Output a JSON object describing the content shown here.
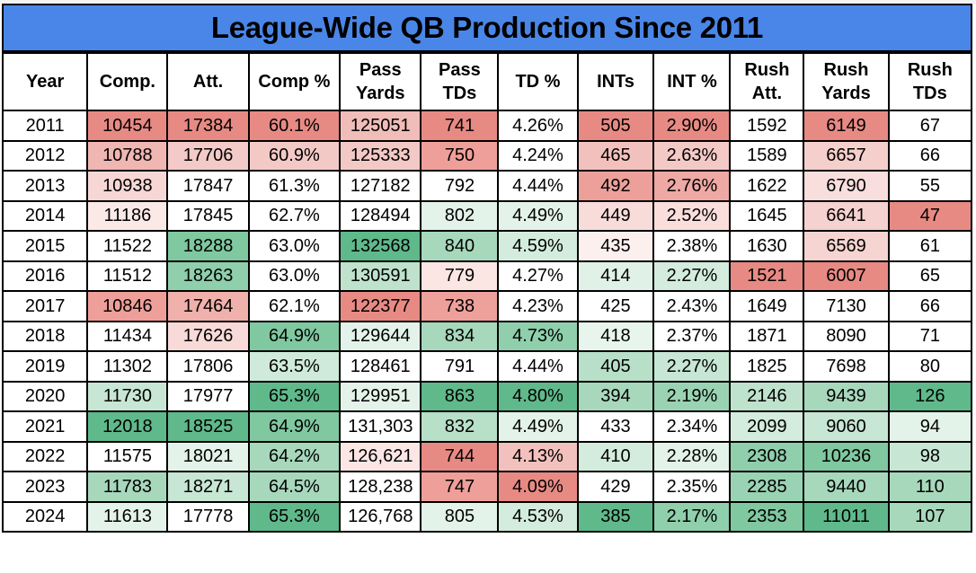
{
  "chart_data": {
    "type": "table",
    "title": "League-Wide QB Production Since 2011",
    "columns": [
      {
        "key": "year",
        "lines": [
          "Year"
        ]
      },
      {
        "key": "comp",
        "lines": [
          "Comp."
        ]
      },
      {
        "key": "att",
        "lines": [
          "Att."
        ]
      },
      {
        "key": "comp_pct",
        "lines": [
          "Comp %"
        ]
      },
      {
        "key": "pass_yards",
        "lines": [
          "Pass",
          "Yards"
        ]
      },
      {
        "key": "pass_tds",
        "lines": [
          "Pass",
          "TDs"
        ]
      },
      {
        "key": "td_pct",
        "lines": [
          "TD %"
        ]
      },
      {
        "key": "ints",
        "lines": [
          "INTs"
        ]
      },
      {
        "key": "int_pct",
        "lines": [
          "INT %"
        ]
      },
      {
        "key": "rush_att",
        "lines": [
          "Rush",
          "Att."
        ]
      },
      {
        "key": "rush_yards",
        "lines": [
          "Rush",
          "Yards"
        ]
      },
      {
        "key": "rush_tds",
        "lines": [
          "Rush",
          "TDs"
        ]
      }
    ],
    "rows": [
      [
        "2011",
        "10454",
        "17384",
        "60.1%",
        "125051",
        "741",
        "4.26%",
        "505",
        "2.90%",
        "1592",
        "6149",
        "67"
      ],
      [
        "2012",
        "10788",
        "17706",
        "60.9%",
        "125333",
        "750",
        "4.24%",
        "465",
        "2.63%",
        "1589",
        "6657",
        "66"
      ],
      [
        "2013",
        "10938",
        "17847",
        "61.3%",
        "127182",
        "792",
        "4.44%",
        "492",
        "2.76%",
        "1622",
        "6790",
        "55"
      ],
      [
        "2014",
        "11186",
        "17845",
        "62.7%",
        "128494",
        "802",
        "4.49%",
        "449",
        "2.52%",
        "1645",
        "6641",
        "47"
      ],
      [
        "2015",
        "11522",
        "18288",
        "63.0%",
        "132568",
        "840",
        "4.59%",
        "435",
        "2.38%",
        "1630",
        "6569",
        "61"
      ],
      [
        "2016",
        "11512",
        "18263",
        "63.0%",
        "130591",
        "779",
        "4.27%",
        "414",
        "2.27%",
        "1521",
        "6007",
        "65"
      ],
      [
        "2017",
        "10846",
        "17464",
        "62.1%",
        "122377",
        "738",
        "4.23%",
        "425",
        "2.43%",
        "1649",
        "7130",
        "66"
      ],
      [
        "2018",
        "11434",
        "17626",
        "64.9%",
        "129644",
        "834",
        "4.73%",
        "418",
        "2.37%",
        "1871",
        "8090",
        "71"
      ],
      [
        "2019",
        "11302",
        "17806",
        "63.5%",
        "128461",
        "791",
        "4.44%",
        "405",
        "2.27%",
        "1825",
        "7698",
        "80"
      ],
      [
        "2020",
        "11730",
        "17977",
        "65.3%",
        "129951",
        "863",
        "4.80%",
        "394",
        "2.19%",
        "2146",
        "9439",
        "126"
      ],
      [
        "2021",
        "12018",
        "18525",
        "64.9%",
        "131,303",
        "832",
        "4.49%",
        "433",
        "2.34%",
        "2099",
        "9060",
        "94"
      ],
      [
        "2022",
        "11575",
        "18021",
        "64.2%",
        "126,621",
        "744",
        "4.13%",
        "410",
        "2.28%",
        "2308",
        "10236",
        "98"
      ],
      [
        "2023",
        "11783",
        "18271",
        "64.5%",
        "128,238",
        "747",
        "4.09%",
        "429",
        "2.35%",
        "2285",
        "9440",
        "110"
      ],
      [
        "2024",
        "11613",
        "17778",
        "65.3%",
        "126,768",
        "805",
        "4.53%",
        "385",
        "2.17%",
        "2353",
        "11011",
        "107"
      ]
    ],
    "fills": [
      [
        "#ffffff",
        "#e88a84",
        "#e88a84",
        "#e88a84",
        "#f0bdb9",
        "#e88a84",
        "#ffffff",
        "#e88a84",
        "#e88a84",
        "#ffffff",
        "#e88a84",
        "#ffffff"
      ],
      [
        "#ffffff",
        "#f0b6b2",
        "#f3cac7",
        "#f3c9c6",
        "#f3c9c6",
        "#ef9f99",
        "#ffffff",
        "#f3c1bd",
        "#f3c9c6",
        "#ffffff",
        "#f5cfcc",
        "#ffffff"
      ],
      [
        "#ffffff",
        "#f7d7d5",
        "#ffffff",
        "#ffffff",
        "#ffffff",
        "#ffffff",
        "#ffffff",
        "#eda09a",
        "#eea9a4",
        "#ffffff",
        "#f8dedc",
        "#ffffff"
      ],
      [
        "#ffffff",
        "#fbe9e8",
        "#ffffff",
        "#ffffff",
        "#ffffff",
        "#e4f3ea",
        "#e4f3ea",
        "#f8dcda",
        "#f9dedc",
        "#ffffff",
        "#f5d2cf",
        "#e88a84"
      ],
      [
        "#ffffff",
        "#ffffff",
        "#7fc8a0",
        "#ffffff",
        "#5fb98b",
        "#a7d8bc",
        "#d3ecdd",
        "#fcf0ef",
        "#ffffff",
        "#ffffff",
        "#f6d4d1",
        "#ffffff"
      ],
      [
        "#ffffff",
        "#ffffff",
        "#8fcfac",
        "#ffffff",
        "#bfe2cd",
        "#fbe6e4",
        "#ffffff",
        "#e0f1e7",
        "#d3ecdd",
        "#e88a84",
        "#e88a84",
        "#ffffff"
      ],
      [
        "#ffffff",
        "#ef9f99",
        "#f0b0ab",
        "#ffffff",
        "#e88a84",
        "#eea09a",
        "#ffffff",
        "#ffffff",
        "#ffffff",
        "#ffffff",
        "#ffffff",
        "#ffffff"
      ],
      [
        "#ffffff",
        "#ffffff",
        "#f8dad8",
        "#7fc8a0",
        "#e4f3ea",
        "#a7d8bc",
        "#8fcfac",
        "#e8f5ed",
        "#ffffff",
        "#ffffff",
        "#ffffff",
        "#ffffff"
      ],
      [
        "#ffffff",
        "#ffffff",
        "#ffffff",
        "#cfeada",
        "#ffffff",
        "#ffffff",
        "#ffffff",
        "#b8dfc8",
        "#c7e6d3",
        "#ffffff",
        "#ffffff",
        "#ffffff"
      ],
      [
        "#ffffff",
        "#c7e6d3",
        "#ffffff",
        "#5fb98b",
        "#e4f3ea",
        "#5fb98b",
        "#5fb98b",
        "#a7d8bc",
        "#9ad3b3",
        "#bfe2cd",
        "#a7d8bc",
        "#5fb98b"
      ],
      [
        "#ffffff",
        "#5fb98b",
        "#5fb98b",
        "#7fc8a0",
        "#ffffff",
        "#b8dfc8",
        "#e4f3ea",
        "#ffffff",
        "#ffffff",
        "#d3ecdd",
        "#c7e6d3",
        "#e4f3ea"
      ],
      [
        "#ffffff",
        "#ffffff",
        "#e4f3ea",
        "#a7d8bc",
        "#fbe6e4",
        "#e88a84",
        "#f3c1bd",
        "#d3ecdd",
        "#e4f3ea",
        "#8fcfac",
        "#7fc8a0",
        "#c7e6d3"
      ],
      [
        "#ffffff",
        "#a7d8bc",
        "#c7e6d3",
        "#a7d8bc",
        "#ffffff",
        "#ef9f99",
        "#e88a84",
        "#ffffff",
        "#ffffff",
        "#9ad3b3",
        "#a7d8bc",
        "#a7d8bc"
      ],
      [
        "#ffffff",
        "#e4f3ea",
        "#ffffff",
        "#5fb98b",
        "#ffffff",
        "#e4f3ea",
        "#d3ecdd",
        "#5fb98b",
        "#8fcfac",
        "#7fc8a0",
        "#5fb98b",
        "#a7d8bc"
      ]
    ]
  }
}
